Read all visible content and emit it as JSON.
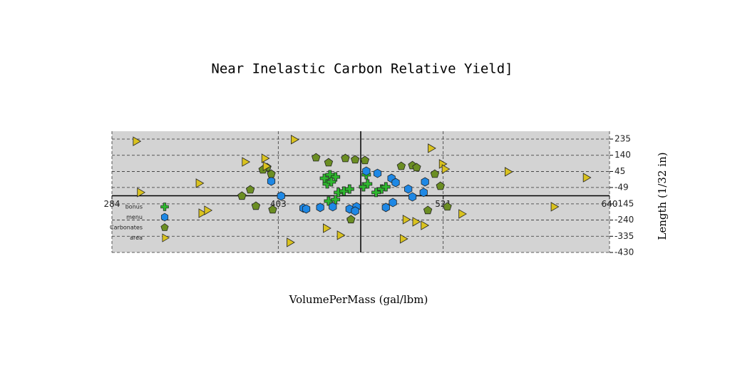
{
  "chart_data": {
    "type": "scatter",
    "title": "Near Inelastic Carbon Relative Yield]",
    "x_label": "VolumePerMass (gal/lbm)",
    "y_label": "Length (1/32 in)",
    "xlim": [
      284,
      640
    ],
    "xticks": [
      284,
      403,
      521,
      640
    ],
    "ylim": [
      -430,
      235
    ],
    "yticks": [
      235,
      140,
      45,
      -49,
      -145,
      -240,
      -335,
      -430
    ],
    "grid": true,
    "legend": "lower left",
    "series": [
      {
        "name": "bonus",
        "color": "#2eb82e",
        "marker": "plus",
        "x": [
          436,
          440,
          444,
          438,
          441,
          446,
          450,
          454,
          464,
          467,
          473,
          477,
          480,
          439,
          444,
          466
        ],
        "values": [
          5,
          26,
          13,
          -28,
          -16,
          -78,
          -70,
          -58,
          -45,
          -28,
          -78,
          -58,
          -45,
          -129,
          -120,
          26
        ]
      },
      {
        "name": "menu",
        "color": "#1e88e5",
        "marker": "hexagon",
        "x": [
          398,
          405,
          421,
          423,
          433,
          442,
          454,
          459,
          458,
          466,
          474,
          484,
          487,
          496,
          499,
          507,
          508,
          485,
          480
        ],
        "values": [
          -12,
          -99,
          -170,
          -175,
          -166,
          -162,
          -175,
          -162,
          -187,
          47,
          34,
          5,
          -20,
          -58,
          -104,
          -78,
          -16,
          -137,
          -166
        ]
      },
      {
        "name": "Carbonates",
        "color": "#6b8e23",
        "marker": "pentagon",
        "x": [
          430,
          439,
          451,
          458,
          465,
          395,
          392,
          398,
          383,
          377,
          387,
          399,
          491,
          499,
          502,
          515,
          519,
          510,
          524,
          455
        ],
        "values": [
          126,
          97,
          122,
          114,
          110,
          68,
          55,
          30,
          -62,
          -99,
          -158,
          -179,
          76,
          80,
          68,
          30,
          -41,
          -183,
          -162,
          -237
        ]
      },
      {
        "name": "area",
        "color": "#d9c21f",
        "marker": "triangle-right",
        "x": [
          301,
          414,
          512,
          379,
          393,
          394,
          346,
          520,
          522,
          567,
          623,
          304,
          348,
          352,
          534,
          600,
          494,
          501,
          507,
          437,
          447,
          492,
          411
        ],
        "values": [
          222,
          232,
          181,
          101,
          122,
          76,
          -24,
          89,
          59,
          43,
          9,
          -78,
          -200,
          -183,
          -204,
          -162,
          -237,
          -250,
          -271,
          -288,
          -329,
          -350,
          -371
        ]
      }
    ]
  }
}
